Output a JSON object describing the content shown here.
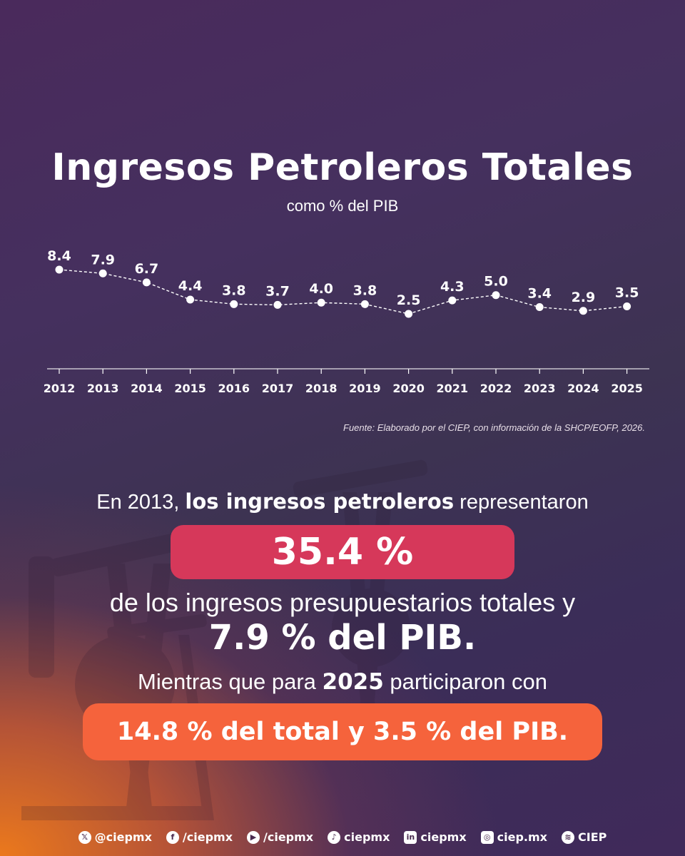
{
  "header": {
    "title": "Ingresos Petroleros Totales",
    "subtitle": "como % del PIB"
  },
  "chart_data": {
    "type": "line",
    "title": "Ingresos Petroleros Totales",
    "subtitle": "como % del PIB",
    "categories": [
      "2012",
      "2013",
      "2014",
      "2015",
      "2016",
      "2017",
      "2018",
      "2019",
      "2020",
      "2021",
      "2022",
      "2023",
      "2024",
      "2025"
    ],
    "values": [
      8.4,
      7.9,
      6.7,
      4.4,
      3.8,
      3.7,
      4.0,
      3.8,
      2.5,
      4.3,
      5.0,
      3.4,
      2.9,
      3.5
    ],
    "labels": [
      "8.4",
      "7.9",
      "6.7",
      "4.4",
      "3.8",
      "3.7",
      "4.0",
      "3.8",
      "2.5",
      "4.3",
      "5.0",
      "3.4",
      "2.9",
      "3.5"
    ],
    "xlabel": "",
    "ylabel": "",
    "line_style": "dashed",
    "grid": false
  },
  "source": "Fuente: Elaborado por el CIEP, con información de la SHCP/EOFP, 2026.",
  "summary": {
    "line1_pre": "En 2013, ",
    "line1_bold": "los ingresos petroleros",
    "line1_post": " representaron",
    "highlight_1": "35.4 %",
    "line2": "de los ingresos presupuestarios totales y",
    "line3": "7.9 % del PIB.",
    "line4_pre": "Mientras que para ",
    "line4_bold": "2025",
    "line4_post": " participaron con",
    "highlight_2": "14.8 % del total y 3.5 % del PIB."
  },
  "footer": {
    "social": [
      {
        "icon": "x-icon",
        "glyph": "𝕏",
        "handle": "@ciepmx"
      },
      {
        "icon": "facebook-icon",
        "glyph": "f",
        "handle": "/ciepmx"
      },
      {
        "icon": "youtube-icon",
        "glyph": "▶",
        "handle": "/ciepmx"
      },
      {
        "icon": "tiktok-icon",
        "glyph": "♪",
        "handle": "ciepmx"
      },
      {
        "icon": "linkedin-icon",
        "glyph": "in",
        "handle": "ciepmx"
      },
      {
        "icon": "instagram-icon",
        "glyph": "◎",
        "handle": "ciep.mx"
      },
      {
        "icon": "spotify-icon",
        "glyph": "≋",
        "handle": "CIEP"
      }
    ]
  },
  "colors": {
    "highlight_red": "#d6385a",
    "highlight_orange": "#f5633c",
    "text": "#ffffff"
  }
}
